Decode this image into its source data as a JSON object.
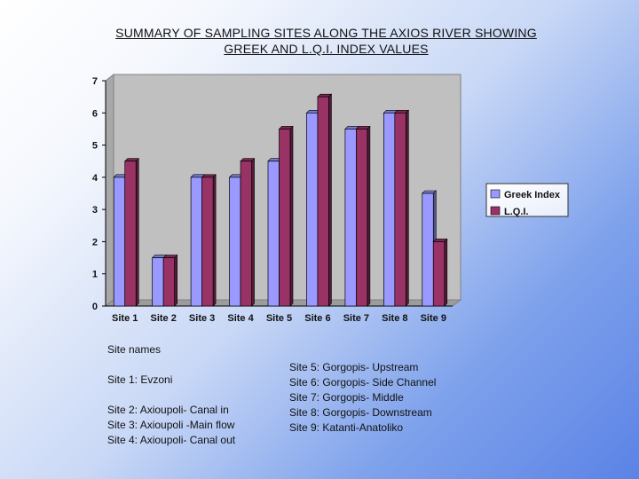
{
  "title_lines": [
    "SUMMARY OF  SAMPLING  SITES ALONG THE AXIOS RIVER SHOWING",
    "GREEK AND L.Q.I.  INDEX VALUES"
  ],
  "chart_data": {
    "type": "bar",
    "title": "SUMMARY OF  SAMPLING  SITES ALONG THE AXIOS RIVER SHOWING GREEK AND L.Q.I.  INDEX VALUES",
    "categories": [
      "Site 1",
      "Site 2",
      "Site 3",
      "Site 4",
      "Site 5",
      "Site 6",
      "Site 7",
      "Site 8",
      "Site 9"
    ],
    "series": [
      {
        "name": "Greek Index",
        "values": [
          4,
          1.5,
          4,
          4,
          4.5,
          6,
          5.5,
          6,
          3.5
        ],
        "color": "#9999ff"
      },
      {
        "name": "L.Q.I.",
        "values": [
          4.5,
          1.5,
          4,
          4.5,
          5.5,
          6.5,
          5.5,
          6,
          2
        ],
        "color": "#993366"
      }
    ],
    "ylim": [
      0,
      7
    ],
    "yticks": [
      0,
      1,
      2,
      3,
      4,
      5,
      6,
      7
    ],
    "xlabel": "",
    "ylabel": "",
    "legend_position": "right",
    "grid": false,
    "plot_background": "#c0c0c0"
  },
  "site_names_heading": "Site names",
  "left_notes": [
    {
      "site": "Site 1",
      "name": "Evzoni",
      "note": ""
    },
    {
      "site": "Site 2",
      "name": "Axioupoli",
      "note": "- Canal in"
    },
    {
      "site": "Site 3",
      "name": "Axioupoli",
      "note": " -Main flow"
    },
    {
      "site": "Site 4",
      "name": "Axioupoli",
      "note": "- Canal out"
    }
  ],
  "right_notes": [
    {
      "site": "Site 5",
      "name": "Gorgopis",
      "note": "- Upstream"
    },
    {
      "site": "Site 6",
      "name": "Gorgopis",
      "note": "- Side Channel"
    },
    {
      "site": "Site 7",
      "name": "Gorgopis",
      "note": "- Middle"
    },
    {
      "site": "Site 8",
      "name": "Gorgopis",
      "note": "- Downstream"
    },
    {
      "site": "Site 9",
      "name": "Katanti-Anatoliko",
      "note": ""
    }
  ]
}
